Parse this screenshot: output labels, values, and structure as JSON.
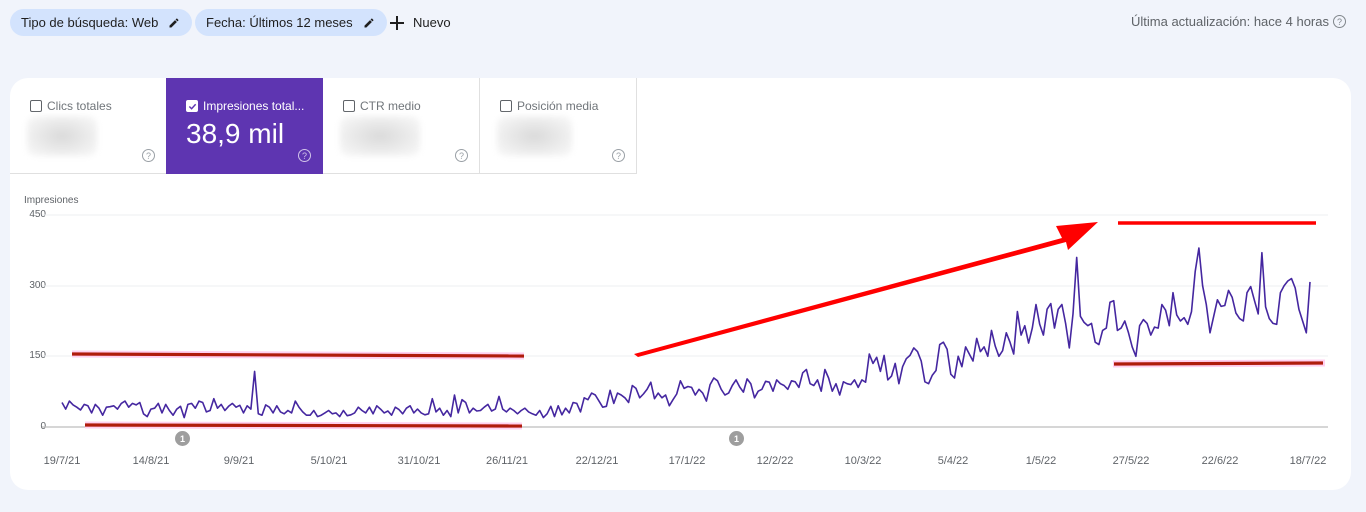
{
  "filters": {
    "chips": [
      {
        "label": "Tipo de búsqueda: Web",
        "icon": "pencil-icon"
      },
      {
        "label": "Fecha: Últimos 12 meses",
        "icon": "pencil-icon"
      }
    ],
    "new_label": "Nuevo",
    "new_icon": "plus-icon"
  },
  "status": {
    "last_updated": "Última actualización: hace 4 horas",
    "help_glyph": "?"
  },
  "metrics": [
    {
      "label": "Clics totales",
      "value": "",
      "checked": false,
      "blurred": true
    },
    {
      "label": "Impresiones total...",
      "value": "38,9 mil",
      "checked": true,
      "blurred": false
    },
    {
      "label": "CTR medio",
      "value": "",
      "checked": false,
      "blurred": true
    },
    {
      "label": "Posición media",
      "value": "",
      "checked": false,
      "blurred": true
    }
  ],
  "colors": {
    "active_metric": "#5e35b1",
    "series_line": "#4527a0",
    "annotation_red": "#ff0000",
    "annotation_dark_red": "#b01c0c",
    "background": "#f1f4fb",
    "chip": "#d3e3fd"
  },
  "chart_data": {
    "type": "line",
    "title": "",
    "ylabel": "Impresiones",
    "xlabel": "",
    "ylim": [
      0,
      450
    ],
    "yticks": [
      0,
      150,
      300,
      450
    ],
    "grid": true,
    "legend": "none",
    "x_tick_labels": [
      "19/7/21",
      "14/8/21",
      "9/9/21",
      "5/10/21",
      "31/10/21",
      "26/11/21",
      "22/12/21",
      "17/1/22",
      "12/2/22",
      "10/3/22",
      "5/4/22",
      "1/5/22",
      "27/5/22",
      "22/6/22",
      "18/7/22"
    ],
    "series": [
      {
        "name": "Impresiones",
        "sampling": "approx. every 2 days, 19/7/21 → 18/7/22",
        "values": [
          52,
          38,
          55,
          47,
          42,
          36,
          48,
          45,
          30,
          48,
          40,
          25,
          42,
          43,
          45,
          38,
          50,
          55,
          42,
          50,
          47,
          52,
          28,
          22,
          38,
          40,
          50,
          30,
          48,
          35,
          25,
          38,
          44,
          20,
          48,
          50,
          40,
          55,
          52,
          32,
          35,
          60,
          40,
          48,
          35,
          44,
          50,
          42,
          46,
          30,
          45,
          38,
          118,
          28,
          25,
          47,
          42,
          30,
          45,
          32,
          28,
          35,
          30,
          55,
          42,
          32,
          25,
          25,
          35,
          22,
          25,
          30,
          35,
          28,
          30,
          22,
          35,
          24,
          26,
          30,
          42,
          35,
          30,
          42,
          28,
          45,
          38,
          30,
          34,
          25,
          42,
          37,
          28,
          40,
          45,
          30,
          38,
          30,
          26,
          28,
          60,
          32,
          40,
          25,
          35,
          22,
          68,
          30,
          58,
          52,
          30,
          40,
          34,
          35,
          42,
          48,
          34,
          38,
          65,
          38,
          32,
          40,
          35,
          28,
          35,
          40,
          32,
          28,
          25,
          35,
          20,
          28,
          44,
          22,
          45,
          26,
          40,
          30,
          52,
          50,
          32,
          62,
          58,
          72,
          68,
          55,
          42,
          44,
          78,
          50,
          72,
          68,
          62,
          52,
          88,
          82,
          62,
          70,
          80,
          95,
          60,
          72,
          62,
          68,
          45,
          58,
          70,
          98,
          82,
          86,
          84,
          68,
          80,
          72,
          55,
          90,
          104,
          98,
          80,
          68,
          72,
          88,
          100,
          85,
          74,
          102,
          92,
          62,
          76,
          80,
          97,
          95,
          76,
          100,
          92,
          88,
          80,
          98,
          96,
          84,
          115,
          122,
          92,
          88,
          100,
          76,
          122,
          104,
          76,
          92,
          68,
          96,
          92,
          90,
          100,
          84,
          100,
          95,
          155,
          135,
          148,
          118,
          152,
          100,
          108,
          135,
          92,
          128,
          145,
          152,
          168,
          160,
          140,
          96,
          92,
          110,
          120,
          175,
          180,
          165,
          112,
          104,
          150,
          128,
          170,
          155,
          140,
          188,
          160,
          170,
          150,
          205,
          172,
          150,
          162,
          200,
          180,
          155,
          245,
          195,
          215,
          178,
          210,
          260,
          218,
          195,
          250,
          262,
          210,
          250,
          260,
          220,
          168,
          240,
          360,
          235,
          222,
          215,
          220,
          180,
          175,
          205,
          210,
          265,
          268,
          205,
          210,
          225,
          200,
          170,
          150,
          215,
          228,
          220,
          195,
          212,
          210,
          260,
          248,
          215,
          285,
          238,
          225,
          232,
          218,
          245,
          330,
          380,
          300,
          260,
          200,
          235,
          270,
          256,
          258,
          290,
          275,
          242,
          230,
          225,
          285,
          298,
          268,
          240,
          370,
          255,
          230,
          220,
          218,
          285,
          300,
          310,
          315,
          295,
          250,
          225,
          200,
          308
        ]
      }
    ],
    "annotations": [
      {
        "type": "horizontal-line",
        "color": "#b01c0c",
        "label": "baseline ~155 (Jul–Nov 2021)"
      },
      {
        "type": "horizontal-line",
        "color": "#b01c0c",
        "label": "baseline ~0 (Jul–Nov 2021)"
      },
      {
        "type": "arrow",
        "color": "#ff0000",
        "label": "upward trend (Jan–May 2022)"
      },
      {
        "type": "horizontal-line",
        "color": "#ff0000",
        "label": "upper bound ~435 (May–Jul 2022)"
      },
      {
        "type": "horizontal-line",
        "color": "#b01c0c",
        "label": "lower bound ~135 (May–Jul 2022)"
      }
    ],
    "event_markers": [
      {
        "label": "1",
        "near": "14/8/21"
      },
      {
        "label": "1",
        "near": "17/1/22"
      }
    ]
  }
}
